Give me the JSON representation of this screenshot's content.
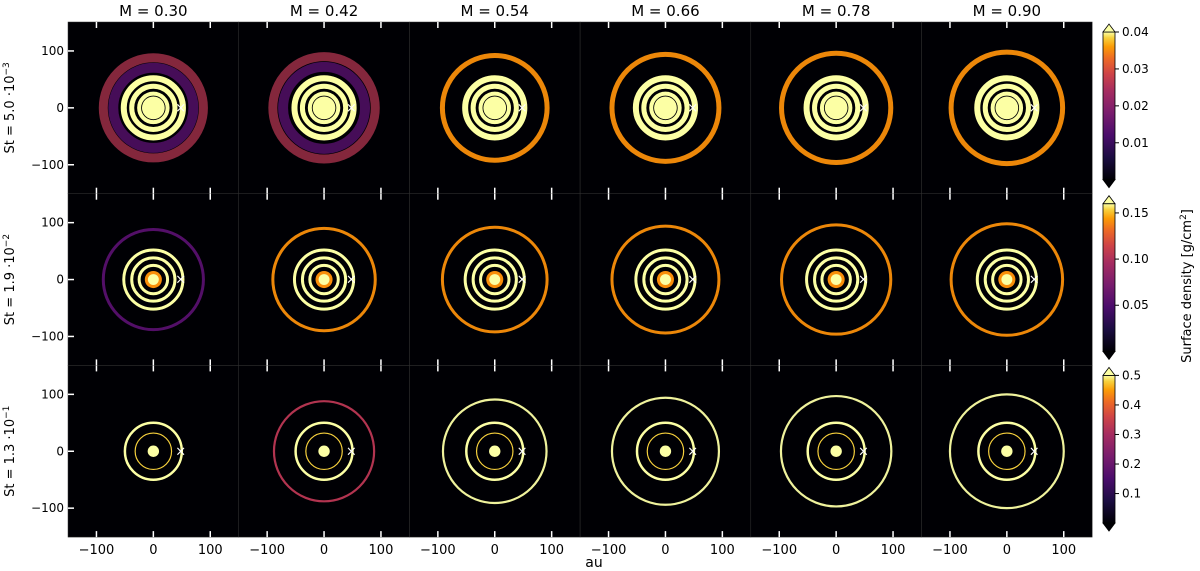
{
  "chart_data": {
    "type": "heatmap",
    "description_grid": "3 rows (Stokes number) x 6 columns (mass parameter M) of dust surface density maps",
    "columns": [
      "M = 0.30",
      "M = 0.42",
      "M = 0.54",
      "M = 0.66",
      "M = 0.78",
      "M = 0.90"
    ],
    "M_values": [
      0.3,
      0.42,
      0.54,
      0.66,
      0.78,
      0.9
    ],
    "rows": [
      {
        "label_main": "St = 5.0 ·10",
        "label_exp": "−3",
        "St": 0.005,
        "colorbar": {
          "min": 0.0,
          "max": 0.04,
          "ticks": [
            0.01,
            0.02,
            0.03,
            0.04
          ],
          "tick_labels": [
            "0.01",
            "0.02",
            "0.03",
            "0.04"
          ]
        }
      },
      {
        "label_main": "St = 1.9 ·10",
        "label_exp": "−2",
        "St": 0.019,
        "colorbar": {
          "min": 0.0,
          "max": 0.16,
          "ticks": [
            0.05,
            0.1,
            0.15
          ],
          "tick_labels": [
            "0.05",
            "0.10",
            "0.15"
          ]
        }
      },
      {
        "label_main": "St = 1.3 ·10",
        "label_exp": "−1",
        "St": 0.13,
        "colorbar": {
          "min": 0.0,
          "max": 0.5,
          "ticks": [
            0.1,
            0.2,
            0.3,
            0.4,
            0.5
          ],
          "tick_labels": [
            "0.1",
            "0.2",
            "0.3",
            "0.4",
            "0.5"
          ]
        }
      }
    ],
    "xlabel": "au",
    "colorbar_label": "Surface density [g/cm",
    "colorbar_label_sup": "2",
    "colorbar_label_end": "]",
    "xlim": [
      -150,
      150
    ],
    "ylim": [
      -150,
      150
    ],
    "xticks": [
      -100,
      0,
      100
    ],
    "xtick_labels": [
      "−100",
      "0",
      "100"
    ],
    "yticks": [
      100,
      0,
      -100
    ],
    "ytick_labels": [
      "100",
      "0",
      "−100"
    ],
    "planet_marker": {
      "symbol": "×",
      "x": 48,
      "y": 0
    },
    "colormap": "inferno",
    "ring_radii_au": [
      25,
      35,
      50,
      95
    ]
  },
  "colors": {
    "background": "#000004",
    "bright": "#fcffa4",
    "mid": "#f98e09",
    "dark": "#bc3754",
    "faint": "#57106e"
  }
}
